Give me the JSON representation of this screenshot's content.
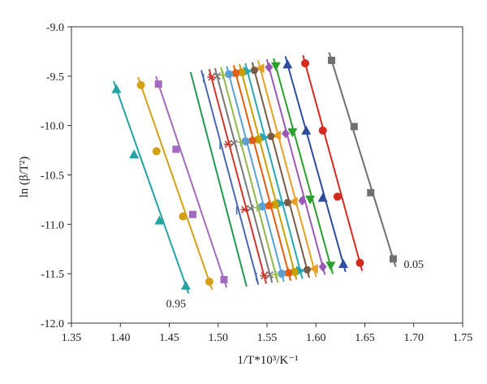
{
  "chart_data": {
    "type": "scatter",
    "title": "",
    "xlabel": "1/T*10³/K⁻¹",
    "ylabel": "ln (β/T²)",
    "xlim": [
      1.35,
      1.75
    ],
    "ylim": [
      -12.0,
      -9.0
    ],
    "xticks": [
      "1.35",
      "1.40",
      "1.45",
      "1.50",
      "1.55",
      "1.60",
      "1.65",
      "1.70",
      "1.75"
    ],
    "yticks": [
      "-9.0",
      "-9.5",
      "-10.0",
      "-10.5",
      "-11.0",
      "-11.5",
      "-12.0"
    ],
    "grid": false,
    "legend": "none",
    "annotations": [
      {
        "text": "0.05",
        "x": 1.7,
        "y": -11.44
      },
      {
        "text": "0.95",
        "x": 1.457,
        "y": -11.84
      }
    ],
    "series": [
      {
        "marker": "square",
        "color": "#707070",
        "x": [
          1.616,
          1.639,
          1.656,
          1.679
        ],
        "y": [
          -9.34,
          -10.01,
          -10.68,
          -11.35
        ]
      },
      {
        "marker": "circle",
        "color": "#d42a1f",
        "x": [
          1.589,
          1.607,
          1.622,
          1.645
        ],
        "y": [
          -9.37,
          -10.05,
          -10.72,
          -11.39
        ]
      },
      {
        "marker": "triangle-up",
        "color": "#2e4d9e",
        "x": [
          1.571,
          1.59,
          1.607,
          1.628
        ],
        "y": [
          -9.38,
          -10.05,
          -10.73,
          -11.4
        ]
      },
      {
        "marker": "triangle-down",
        "color": "#2ca02c",
        "x": [
          1.559,
          1.576,
          1.594,
          1.615
        ],
        "y": [
          -9.4,
          -10.07,
          -10.75,
          -11.42
        ]
      },
      {
        "marker": "diamond",
        "color": "#9b59b6",
        "x": [
          1.552,
          1.569,
          1.586,
          1.607
        ],
        "y": [
          -9.41,
          -10.08,
          -10.76,
          -11.43
        ]
      },
      {
        "marker": "triangle-left",
        "color": "#e8a023",
        "x": [
          1.543,
          1.56,
          1.577,
          1.598
        ],
        "y": [
          -9.42,
          -10.1,
          -10.77,
          -11.45
        ]
      },
      {
        "marker": "hexagon",
        "color": "#7a5a45",
        "x": [
          1.537,
          1.554,
          1.571,
          1.591
        ],
        "y": [
          -9.44,
          -10.11,
          -10.78,
          -11.46
        ]
      },
      {
        "marker": "triangle-right",
        "color": "#27a7b5",
        "x": [
          1.53,
          1.547,
          1.564,
          1.584
        ],
        "y": [
          -9.45,
          -10.12,
          -10.79,
          -11.47
        ]
      },
      {
        "marker": "circle",
        "color": "#c9a000",
        "x": [
          1.524,
          1.541,
          1.558,
          1.578
        ],
        "y": [
          -9.46,
          -10.14,
          -10.8,
          -11.48
        ]
      },
      {
        "marker": "pentagon",
        "color": "#e25d12",
        "x": [
          1.518,
          1.535,
          1.552,
          1.572
        ],
        "y": [
          -9.47,
          -10.15,
          -10.81,
          -11.49
        ]
      },
      {
        "marker": "circle",
        "color": "#5a9fd6",
        "x": [
          1.511,
          1.528,
          1.545,
          1.565
        ],
        "y": [
          -9.48,
          -10.16,
          -10.82,
          -11.5
        ]
      },
      {
        "marker": "plus",
        "color": "#93b84a",
        "x": [
          1.505,
          1.523,
          1.54,
          1.559
        ],
        "y": [
          -9.49,
          -10.17,
          -10.83,
          -11.51
        ]
      },
      {
        "marker": "x",
        "color": "#777777",
        "x": [
          1.499,
          1.516,
          1.533,
          1.553
        ],
        "y": [
          -9.5,
          -10.18,
          -10.84,
          -11.51
        ]
      },
      {
        "marker": "asterisk",
        "color": "#d0342c",
        "x": [
          1.493,
          1.51,
          1.527,
          1.547
        ],
        "y": [
          -9.51,
          -10.19,
          -10.85,
          -11.52
        ]
      },
      {
        "marker": "dash",
        "color": "#4a68b0",
        "x": [
          1.485,
          1.502,
          1.519,
          1.539
        ],
        "y": [
          -9.52,
          -10.2,
          -10.86,
          -11.53
        ]
      },
      {
        "marker": "none",
        "color": "#1f9a50",
        "x": [
          1.474,
          1.491,
          1.508,
          1.527
        ],
        "y": [
          -9.54,
          -10.22,
          -10.88,
          -11.55
        ]
      },
      {
        "marker": "square",
        "color": "#a26bc0",
        "x": [
          1.439,
          1.457,
          1.474,
          1.506
        ],
        "y": [
          -9.58,
          -10.24,
          -10.9,
          -11.56
        ]
      },
      {
        "marker": "circle",
        "color": "#d4a017",
        "x": [
          1.421,
          1.437,
          1.464,
          1.491
        ],
        "y": [
          -9.59,
          -10.26,
          -10.92,
          -11.58
        ]
      },
      {
        "marker": "triangle-up",
        "color": "#25a3a3",
        "x": [
          1.396,
          1.414,
          1.44,
          1.467
        ],
        "y": [
          -9.63,
          -10.29,
          -10.96,
          -11.62
        ]
      }
    ]
  }
}
